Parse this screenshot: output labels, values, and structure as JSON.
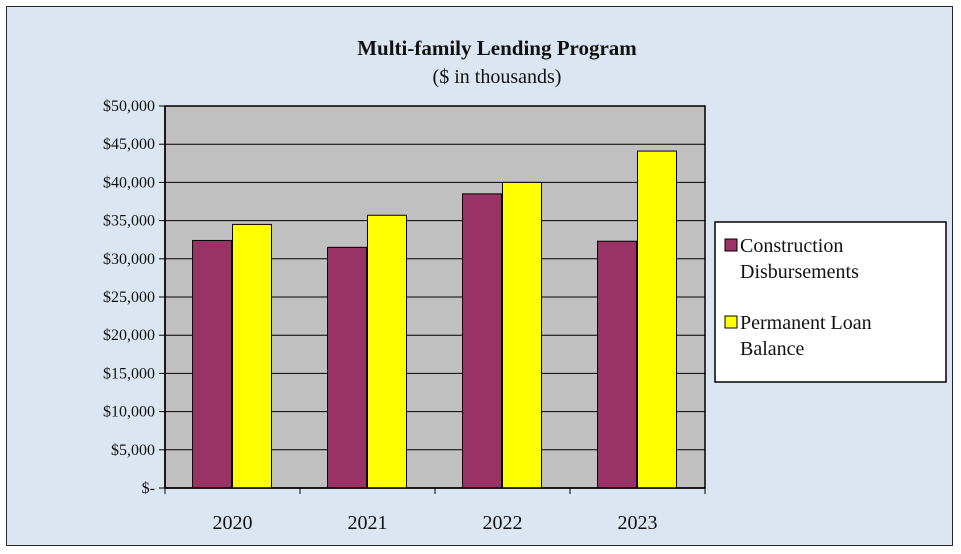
{
  "chart_data": {
    "type": "bar",
    "title": "Multi-family  Lending Program",
    "subtitle": "($ in thousands)",
    "xlabel": "",
    "ylabel": "",
    "categories": [
      "2020",
      "2021",
      "2022",
      "2023"
    ],
    "series": [
      {
        "name": "Construction Disbursements",
        "name_lines": [
          "Construction",
          "Disbursements"
        ],
        "color": "#993366",
        "values": [
          32400,
          31500,
          38500,
          32300
        ]
      },
      {
        "name": "Permanent Loan Balance",
        "name_lines": [
          "Permanent Loan",
          "Balance"
        ],
        "color": "#ffff00",
        "values": [
          34500,
          35700,
          40000,
          44100
        ]
      }
    ],
    "ylim": [
      0,
      50000
    ],
    "ytick_step": 5000,
    "ytick_labels": [
      "$-",
      "$5,000",
      "$10,000",
      "$15,000",
      "$20,000",
      "$25,000",
      "$30,000",
      "$35,000",
      "$40,000",
      "$45,000",
      "$50,000"
    ],
    "grid": true,
    "plot_background": "#c0c0c0",
    "chart_background": "#dce6f2",
    "legend_position": "right"
  }
}
